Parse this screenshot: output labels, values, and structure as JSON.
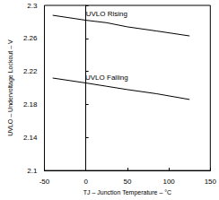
{
  "chart_data": {
    "type": "line",
    "x_label": "TJ – Junction Temperature – °C",
    "y_label": "UVLO – Undervoltage Lockout – V",
    "series": [
      {
        "name": "UVLO Rising",
        "color": "#000000",
        "x": [
          -40,
          0,
          25,
          50,
          85,
          125
        ],
        "values": [
          2.288,
          2.282,
          2.279,
          2.274,
          2.269,
          2.263
        ]
      },
      {
        "name": "UVLO Falling",
        "color": "#000000",
        "x": [
          -40,
          0,
          25,
          50,
          85,
          125
        ],
        "values": [
          2.212,
          2.206,
          2.202,
          2.198,
          2.193,
          2.186
        ]
      }
    ],
    "xlim": [
      -50,
      150
    ],
    "xticks": [
      -50,
      0,
      50,
      100,
      150
    ],
    "ylim": [
      2.1,
      2.3
    ],
    "yticks": [
      2.1,
      2.14,
      2.18,
      2.22,
      2.26,
      2.3
    ],
    "grid": false
  }
}
